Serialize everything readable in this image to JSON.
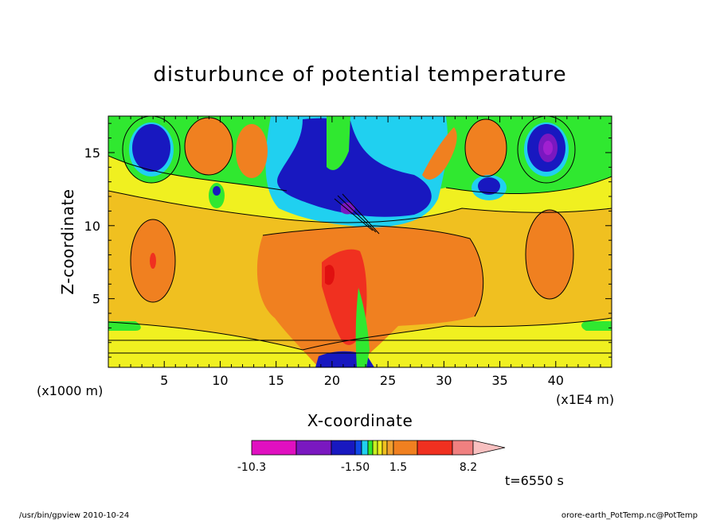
{
  "chart_data": {
    "type": "heatmap",
    "title": "disturbunce of potential temperature",
    "xlabel": "X-coordinate",
    "ylabel": "Z-coordinate",
    "x_unit_left": "(x1000 m)",
    "x_unit_right": "(x1E4 m)",
    "xlim": [
      0,
      45
    ],
    "ylim": [
      0.3,
      17.5
    ],
    "x_ticks": [
      "5",
      "10",
      "15",
      "20",
      "25",
      "30",
      "35",
      "40"
    ],
    "y_ticks": [
      "5",
      "10",
      "15"
    ],
    "colorbar": {
      "labels": [
        "-10.3",
        "-1.50",
        "1.5",
        "8.2"
      ],
      "colors": [
        "#e010c0",
        "#7a18c0",
        "#1818c0",
        "#1048e8",
        "#20d0f0",
        "#30e830",
        "#c8f020",
        "#f0f020",
        "#f0c020",
        "#f0a030",
        "#f08020",
        "#f03020",
        "#f08080",
        "#f8c0c0"
      ]
    },
    "time_label": "t=6550 s",
    "footer_left": "/usr/bin/gpview  2010-10-24",
    "footer_right": "orore-earth_PotTemp.nc@PotTemp",
    "colors": {
      "background": "#f0c020",
      "yellow": "#f0f020",
      "orange": "#f08020",
      "red": "#f03020",
      "green": "#30e830",
      "cyan": "#20d0f0",
      "blue": "#1818c0",
      "purple": "#7a18c0"
    }
  }
}
